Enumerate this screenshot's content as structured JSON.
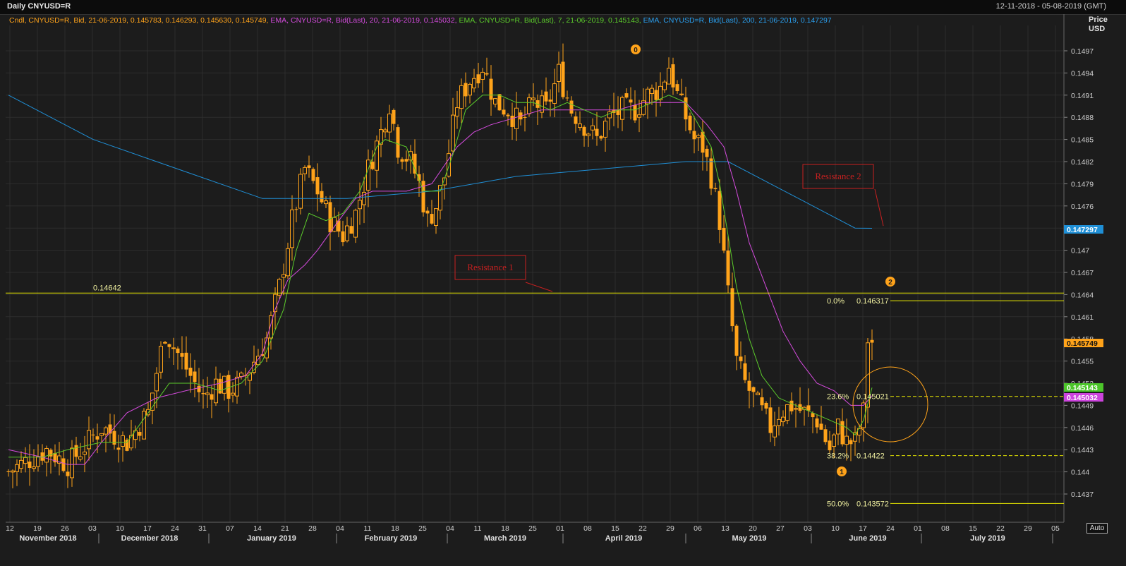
{
  "header": {
    "title": "Daily CNYUSD=R",
    "date_range": "12-11-2018 - 05-08-2019 (GMT)"
  },
  "legend": {
    "candle": "Cndl, CNYUSD=R, Bid, 21-06-2019, 0.145783, 0.146293, 0.145630, 0.145749,",
    "ema20": "EMA, CNYUSD=R, Bid(Last), 20, 21-06-2019, 0.145032,",
    "ema7": "EMA, CNYUSD=R, Bid(Last), 7, 21-06-2019, 0.145143,",
    "ema200": "EMA, CNYUSD=R, Bid(Last), 200, 21-06-2019, 0.147297"
  },
  "axis": {
    "title_line1": "Price",
    "title_line2": "USD",
    "auto_label": "Auto"
  },
  "colors": {
    "background": "#1c1c1c",
    "grid": "#2d2d2d",
    "candle": "#ffa31a",
    "ema20": "#d54bde",
    "ema7": "#5ccc2b",
    "ema200": "#1f8fd6",
    "level": "#e6e600",
    "annotation": "#c82020",
    "marker": "#ffa31a",
    "ema200_tag": "#1f8fd6",
    "last_tag": "#ffa31a",
    "ema7_tag": "#4cc62a",
    "ema20_tag": "#cc44dd"
  },
  "chart_data": {
    "type": "candlestick",
    "instrument": "CNYUSD=R",
    "ylim": [
      0.1434,
      0.15
    ],
    "y_ticks": [
      "0.1437",
      "0.144",
      "0.1443",
      "0.1446",
      "0.1449",
      "0.1452",
      "0.1455",
      "0.1458",
      "0.1461",
      "0.1464",
      "0.1467",
      "0.147",
      "0.1473",
      "0.1476",
      "0.1479",
      "0.1482",
      "0.1485",
      "0.1488",
      "0.1491",
      "0.1494",
      "0.1497"
    ],
    "x_ticks": [
      "12",
      "19",
      "26",
      "03",
      "10",
      "17",
      "24",
      "31",
      "07",
      "14",
      "21",
      "28",
      "04",
      "11",
      "18",
      "25",
      "04",
      "11",
      "18",
      "25",
      "01",
      "08",
      "15",
      "22",
      "29",
      "06",
      "13",
      "20",
      "27",
      "03",
      "10",
      "17",
      "24",
      "01",
      "08",
      "15",
      "22",
      "29",
      "05"
    ],
    "months": [
      "November 2018",
      "December 2018",
      "January 2019",
      "February 2019",
      "March 2019",
      "April 2019",
      "May 2019",
      "June 2019",
      "July 2019"
    ],
    "last_close": 0.145749,
    "series_path": [
      [
        0,
        0.144
      ],
      [
        9,
        0.1443
      ],
      [
        14,
        0.1441
      ],
      [
        22,
        0.1446
      ],
      [
        28,
        0.1444
      ],
      [
        33,
        0.1448
      ],
      [
        37,
        0.1459
      ],
      [
        40,
        0.1456
      ],
      [
        43,
        0.1453
      ],
      [
        46,
        0.145
      ],
      [
        49,
        0.1452
      ],
      [
        52,
        0.1451
      ],
      [
        55,
        0.1452
      ],
      [
        58,
        0.1455
      ],
      [
        61,
        0.1458
      ],
      [
        64,
        0.1465
      ],
      [
        67,
        0.1474
      ],
      [
        70,
        0.1481
      ],
      [
        73,
        0.1478
      ],
      [
        76,
        0.1474
      ],
      [
        79,
        0.1472
      ],
      [
        82,
        0.1475
      ],
      [
        85,
        0.1481
      ],
      [
        88,
        0.1486
      ],
      [
        90,
        0.149
      ],
      [
        92,
        0.1484
      ],
      [
        95,
        0.1482
      ],
      [
        97,
        0.1479
      ],
      [
        99,
        0.1474
      ],
      [
        101,
        0.1476
      ],
      [
        103,
        0.148
      ],
      [
        106,
        0.149
      ],
      [
        109,
        0.1493
      ],
      [
        112,
        0.1495
      ],
      [
        115,
        0.149
      ],
      [
        118,
        0.1489
      ],
      [
        121,
        0.1487
      ],
      [
        124,
        0.149
      ],
      [
        127,
        0.1489
      ],
      [
        130,
        0.1494
      ],
      [
        133,
        0.1489
      ],
      [
        136,
        0.1487
      ],
      [
        139,
        0.1485
      ],
      [
        142,
        0.1488
      ],
      [
        145,
        0.1489
      ],
      [
        148,
        0.1489
      ],
      [
        151,
        0.1491
      ],
      [
        154,
        0.1492
      ],
      [
        156,
        0.1495
      ],
      [
        158,
        0.1491
      ],
      [
        160,
        0.1488
      ],
      [
        162,
        0.1485
      ],
      [
        164,
        0.1484
      ],
      [
        166,
        0.148
      ],
      [
        168,
        0.1474
      ],
      [
        170,
        0.1464
      ],
      [
        172,
        0.1455
      ],
      [
        174,
        0.1452
      ],
      [
        176,
        0.145
      ],
      [
        178,
        0.1448
      ],
      [
        180,
        0.1446
      ],
      [
        182,
        0.1448
      ],
      [
        185,
        0.1449
      ],
      [
        188,
        0.1448
      ],
      [
        191,
        0.1447
      ],
      [
        194,
        0.1443
      ],
      [
        196,
        0.1446
      ],
      [
        198,
        0.1444
      ],
      [
        200,
        0.1444
      ],
      [
        202,
        0.1448
      ],
      [
        203,
        0.1458
      ],
      [
        204,
        0.14575
      ]
    ],
    "ema7_path": [
      [
        0,
        0.1442
      ],
      [
        8,
        0.1442
      ],
      [
        14,
        0.1443
      ],
      [
        22,
        0.1444
      ],
      [
        28,
        0.1444
      ],
      [
        33,
        0.1448
      ],
      [
        38,
        0.1452
      ],
      [
        44,
        0.1452
      ],
      [
        50,
        0.1451
      ],
      [
        55,
        0.1452
      ],
      [
        60,
        0.1455
      ],
      [
        65,
        0.1462
      ],
      [
        68,
        0.147
      ],
      [
        71,
        0.1475
      ],
      [
        75,
        0.1474
      ],
      [
        79,
        0.1475
      ],
      [
        83,
        0.1478
      ],
      [
        87,
        0.1484
      ],
      [
        89,
        0.1485
      ],
      [
        94,
        0.1484
      ],
      [
        98,
        0.1478
      ],
      [
        102,
        0.1478
      ],
      [
        105,
        0.1483
      ],
      [
        108,
        0.1489
      ],
      [
        112,
        0.1491
      ],
      [
        116,
        0.1491
      ],
      [
        120,
        0.149
      ],
      [
        124,
        0.149
      ],
      [
        128,
        0.1489
      ],
      [
        132,
        0.149
      ],
      [
        136,
        0.1489
      ],
      [
        140,
        0.1488
      ],
      [
        144,
        0.1489
      ],
      [
        148,
        0.1489
      ],
      [
        152,
        0.149
      ],
      [
        156,
        0.1491
      ],
      [
        160,
        0.149
      ],
      [
        163,
        0.1487
      ],
      [
        166,
        0.1484
      ],
      [
        168,
        0.1479
      ],
      [
        170,
        0.1472
      ],
      [
        172,
        0.1465
      ],
      [
        175,
        0.1458
      ],
      [
        178,
        0.1453
      ],
      [
        182,
        0.145
      ],
      [
        186,
        0.1449
      ],
      [
        190,
        0.1448
      ],
      [
        194,
        0.1447
      ],
      [
        198,
        0.1446
      ],
      [
        200,
        0.1445
      ],
      [
        202,
        0.1447
      ],
      [
        204,
        0.14514
      ]
    ],
    "ema20_path": [
      [
        0,
        0.1443
      ],
      [
        8,
        0.1442
      ],
      [
        14,
        0.1441
      ],
      [
        18,
        0.1441
      ],
      [
        22,
        0.1444
      ],
      [
        28,
        0.1448
      ],
      [
        35,
        0.145
      ],
      [
        42,
        0.1451
      ],
      [
        50,
        0.1452
      ],
      [
        56,
        0.1453
      ],
      [
        60,
        0.1456
      ],
      [
        63,
        0.1462
      ],
      [
        66,
        0.1466
      ],
      [
        70,
        0.1468
      ],
      [
        73,
        0.147
      ],
      [
        78,
        0.1474
      ],
      [
        82,
        0.1477
      ],
      [
        86,
        0.1478
      ],
      [
        90,
        0.1478
      ],
      [
        94,
        0.1478
      ],
      [
        100,
        0.1479
      ],
      [
        106,
        0.1484
      ],
      [
        110,
        0.1486
      ],
      [
        114,
        0.1487
      ],
      [
        120,
        0.1488
      ],
      [
        126,
        0.1489
      ],
      [
        132,
        0.1489
      ],
      [
        138,
        0.1489
      ],
      [
        144,
        0.1489
      ],
      [
        150,
        0.149
      ],
      [
        156,
        0.149
      ],
      [
        160,
        0.149
      ],
      [
        165,
        0.1487
      ],
      [
        169,
        0.1484
      ],
      [
        172,
        0.1478
      ],
      [
        175,
        0.1471
      ],
      [
        179,
        0.1465
      ],
      [
        183,
        0.1459
      ],
      [
        187,
        0.1455
      ],
      [
        191,
        0.1452
      ],
      [
        195,
        0.1451
      ],
      [
        199,
        0.1449
      ],
      [
        202,
        0.1449
      ],
      [
        204,
        0.14503
      ]
    ],
    "ema200_path": [
      [
        0,
        0.1491
      ],
      [
        20,
        0.1485
      ],
      [
        40,
        0.1481
      ],
      [
        60,
        0.1477
      ],
      [
        80,
        0.1477
      ],
      [
        100,
        0.1478
      ],
      [
        120,
        0.148
      ],
      [
        140,
        0.1481
      ],
      [
        160,
        0.1482
      ],
      [
        170,
        0.1482
      ],
      [
        180,
        0.1479
      ],
      [
        190,
        0.1476
      ],
      [
        200,
        0.1473
      ],
      [
        204,
        0.147297
      ]
    ],
    "levels": [
      {
        "label": "0.14642",
        "value": 0.14642,
        "style": "solid",
        "span": "full"
      },
      {
        "label": "0.0%",
        "price": "0.146317",
        "value": 0.146317,
        "style": "solid",
        "span": "right"
      },
      {
        "label": "23.6%",
        "price": "0.145021",
        "value": 0.145021,
        "style": "dashed",
        "span": "right"
      },
      {
        "label": "38.2%",
        "price": "0.14422",
        "value": 0.14422,
        "style": "dashed",
        "span": "right"
      },
      {
        "label": "50.0%",
        "price": "0.143572",
        "value": 0.143572,
        "style": "solid",
        "span": "right"
      }
    ],
    "annotations": [
      {
        "text": "Resistance 1",
        "target": "0.14642 line"
      },
      {
        "text": "Resistance 2",
        "target": "EMA 200 end"
      }
    ],
    "markers": [
      "0",
      "1",
      "2"
    ],
    "price_tags": [
      {
        "text": "0.147297",
        "value": 0.147297,
        "color_key": "ema200_tag"
      },
      {
        "text": "0.145749",
        "value": 0.145749,
        "color_key": "last_tag"
      },
      {
        "text": "0.145143",
        "value": 0.145143,
        "color_key": "ema7_tag"
      },
      {
        "text": "0.145032",
        "value": 0.145032,
        "color_key": "ema20_tag"
      }
    ]
  }
}
